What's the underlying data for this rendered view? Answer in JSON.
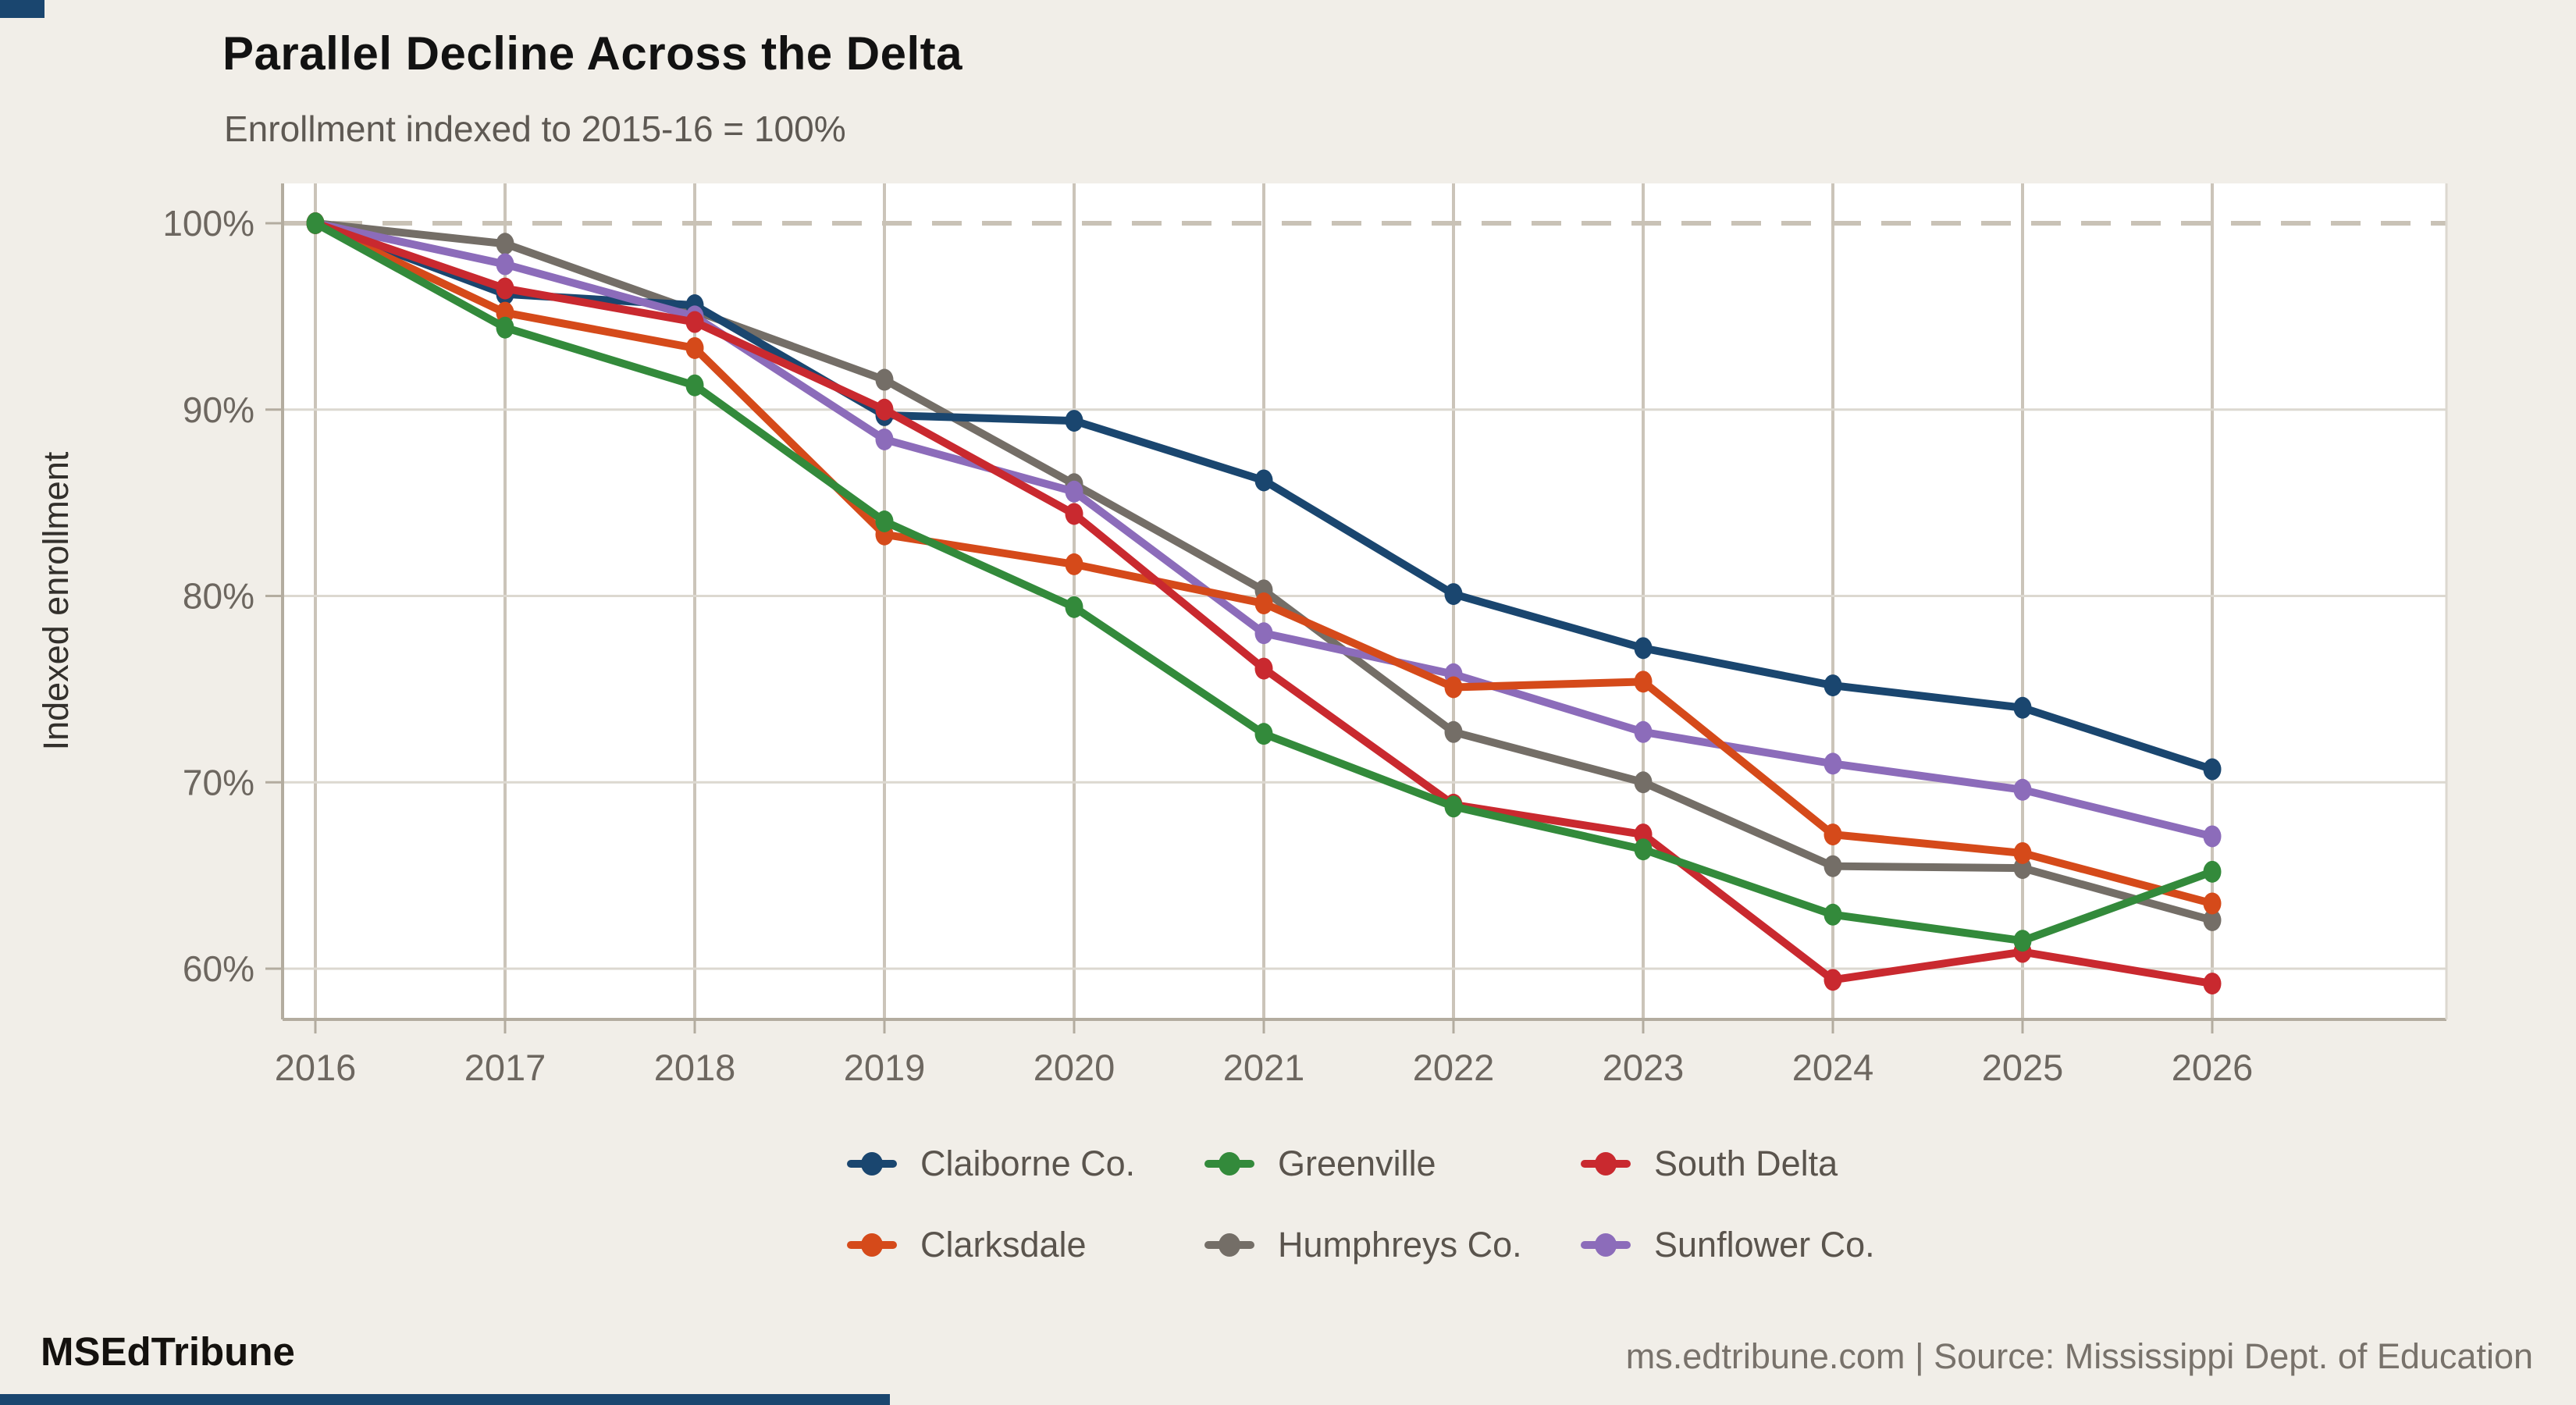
{
  "header": {
    "title": "Parallel Decline Across the Delta",
    "subtitle": "Enrollment indexed to 2015-16 = 100%"
  },
  "chart_data": {
    "type": "line",
    "x": [
      2016,
      2017,
      2018,
      2019,
      2020,
      2021,
      2022,
      2023,
      2024,
      2025,
      2026
    ],
    "series": [
      {
        "name": "Claiborne Co.",
        "color": "#1a466f",
        "values": [
          100,
          96.2,
          95.6,
          89.7,
          89.4,
          86.2,
          80.1,
          77.2,
          75.2,
          74.0,
          70.7
        ]
      },
      {
        "name": "Greenville",
        "color": "#338a3b",
        "values": [
          100,
          94.4,
          91.3,
          84.0,
          79.4,
          72.6,
          68.7,
          66.4,
          62.9,
          61.5,
          65.2
        ]
      },
      {
        "name": "South Delta",
        "color": "#c9292f",
        "values": [
          100,
          96.5,
          94.7,
          90.0,
          84.4,
          76.1,
          68.8,
          67.2,
          59.4,
          60.9,
          59.2
        ]
      },
      {
        "name": "Clarksdale",
        "color": "#d54a1a",
        "values": [
          100,
          95.2,
          93.3,
          83.3,
          81.7,
          79.6,
          75.1,
          75.4,
          67.2,
          66.2,
          63.5
        ]
      },
      {
        "name": "Humphreys Co.",
        "color": "#746e67",
        "values": [
          100,
          98.9,
          95.3,
          91.6,
          86.0,
          80.3,
          72.7,
          70.0,
          65.5,
          65.4,
          62.6
        ]
      },
      {
        "name": "Sunflower Co.",
        "color": "#8c6cba",
        "values": [
          100,
          97.8,
          95.0,
          88.4,
          85.6,
          78.0,
          75.8,
          72.7,
          71.0,
          69.6,
          67.1
        ]
      }
    ],
    "draw_order": [
      "Humphreys Co.",
      "Claiborne Co.",
      "Sunflower Co.",
      "Clarksdale",
      "South Delta",
      "Greenville"
    ],
    "title": "Parallel Decline Across the Delta",
    "xlabel": "",
    "ylabel": "Indexed enrollment",
    "xticks": [
      2016,
      2017,
      2018,
      2019,
      2020,
      2021,
      2022,
      2023,
      2024,
      2025,
      2026
    ],
    "yticks": [
      100,
      90,
      80,
      70,
      60
    ],
    "ytick_labels": [
      "100%",
      "90%",
      "80%",
      "70%",
      "60%"
    ],
    "ylim": [
      57.3,
      102.1
    ],
    "grid": true,
    "legend_position": "bottom",
    "reference_line": {
      "value": 100,
      "style": "dashed"
    }
  },
  "colors": {
    "background": "#f1eee8",
    "plot_background": "#ffffff",
    "grid_horizontal": "#dcd8d0",
    "grid_vertical": "#cbc4b9",
    "reference_dashed": "#c9c2b6",
    "axis": "#b3ac9f",
    "tick_text": "#6d6760",
    "accent": "#1a466f"
  },
  "footer": {
    "brand": "MSEdTribune",
    "source": "ms.edtribune.com | Source: Mississippi Dept. of Education"
  }
}
